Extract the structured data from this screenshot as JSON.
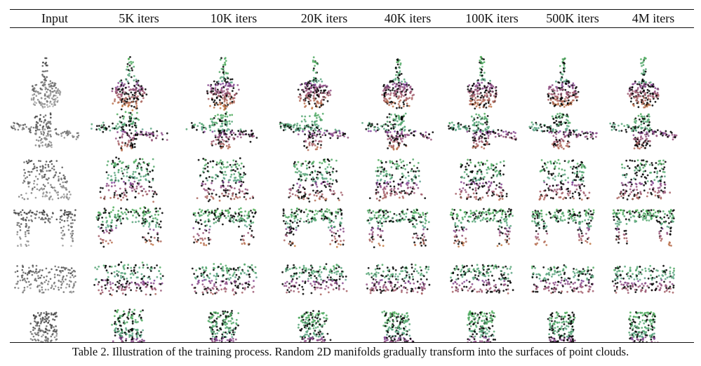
{
  "table": {
    "headers": [
      "Input",
      "5K iters",
      "10K iters",
      "20K iters",
      "40K iters",
      "100K iters",
      "500K iters",
      "4M iters"
    ],
    "rows": [
      "guitar",
      "airplane",
      "laptop",
      "table",
      "sofa",
      "chair"
    ]
  },
  "caption": "Table 2. Illustration of the training process. Random 2D manifolds gradually transform into the surfaces of point clouds.",
  "colors": {
    "green": "#4caf50",
    "purple": "#7b3f9e",
    "orange": "#c87c3a",
    "blue": "#6f8fd0",
    "input_gray": "#444444"
  }
}
